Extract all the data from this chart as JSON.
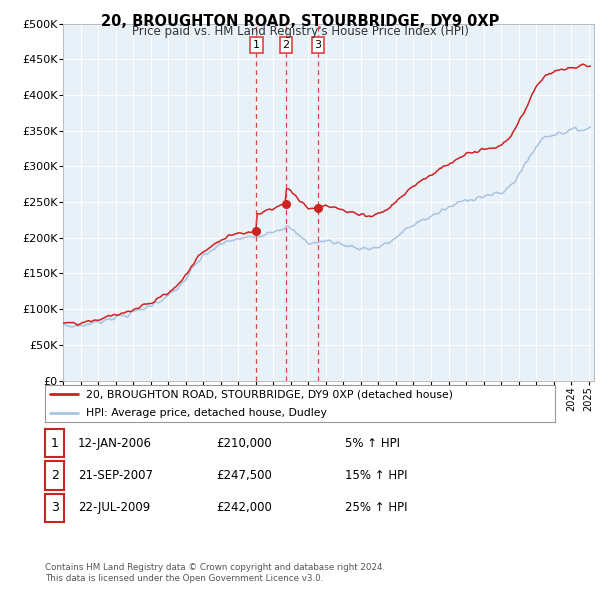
{
  "title": "20, BROUGHTON ROAD, STOURBRIDGE, DY9 0XP",
  "subtitle": "Price paid vs. HM Land Registry's House Price Index (HPI)",
  "legend_line1": "20, BROUGHTON ROAD, STOURBRIDGE, DY9 0XP (detached house)",
  "legend_line2": "HPI: Average price, detached house, Dudley",
  "table": [
    {
      "num": "1",
      "date": "12-JAN-2006",
      "price": "£210,000",
      "change": "5% ↑ HPI"
    },
    {
      "num": "2",
      "date": "21-SEP-2007",
      "price": "£247,500",
      "change": "15% ↑ HPI"
    },
    {
      "num": "3",
      "date": "22-JUL-2009",
      "price": "£242,000",
      "change": "25% ↑ HPI"
    }
  ],
  "footnote1": "Contains HM Land Registry data © Crown copyright and database right 2024.",
  "footnote2": "This data is licensed under the Open Government Licence v3.0.",
  "sale_prices": [
    210000,
    247500,
    242000
  ],
  "hpi_color": "#aac4e0",
  "price_color": "#cc2222",
  "dashed_color": "#dd4444",
  "bg_color": "#e8f0f8",
  "ylim": [
    0,
    500000
  ],
  "yticks": [
    0,
    50000,
    100000,
    150000,
    200000,
    250000,
    300000,
    350000,
    400000,
    450000,
    500000
  ],
  "ytick_labels": [
    "£0",
    "£50K",
    "£100K",
    "£150K",
    "£200K",
    "£250K",
    "£300K",
    "£350K",
    "£400K",
    "£450K",
    "£500K"
  ]
}
